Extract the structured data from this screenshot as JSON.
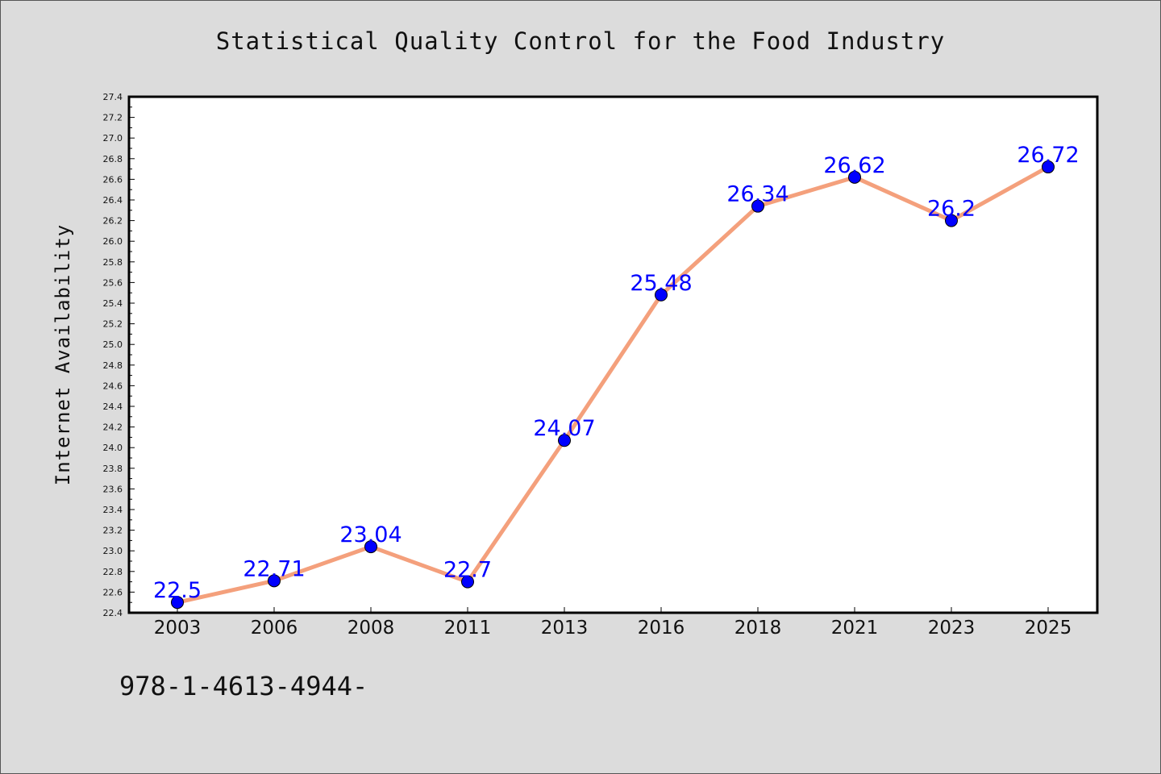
{
  "chart_data": {
    "type": "line",
    "title": "Statistical Quality Control for the Food Industry",
    "xlabel": "",
    "ylabel": "Internet Availability",
    "categories": [
      "2003",
      "2006",
      "2008",
      "2011",
      "2013",
      "2016",
      "2018",
      "2021",
      "2023",
      "2025"
    ],
    "series": [
      {
        "values": [
          22.5,
          22.71,
          23.04,
          22.7,
          24.07,
          25.48,
          26.34,
          26.62,
          26.2,
          26.72
        ],
        "data_labels": [
          "22.5",
          "22.71",
          "23.04",
          "22.7",
          "24.07",
          "25.48",
          "26.34",
          "26.62",
          "26.2",
          "26.72"
        ],
        "line_color": "#f4a07c",
        "marker_color": "#0000ff"
      }
    ],
    "ylim": [
      22.4,
      27.4
    ],
    "yticks": [
      "22.4",
      "22.6",
      "22.8",
      "23.0",
      "23.2",
      "23.4",
      "23.6",
      "23.8",
      "24.0",
      "24.2",
      "24.4",
      "24.6",
      "24.8",
      "25.0",
      "25.2",
      "25.4",
      "25.6",
      "25.8",
      "26.0",
      "26.2",
      "26.4",
      "26.6",
      "26.8",
      "27.0",
      "27.2",
      "27.4"
    ],
    "grid": false,
    "legend": "none"
  },
  "footer": {
    "isbn": "978-1-4613-4944-"
  },
  "colors": {
    "background": "#dcdcdc",
    "plot_background": "#ffffff",
    "label_color": "#0000ff"
  }
}
